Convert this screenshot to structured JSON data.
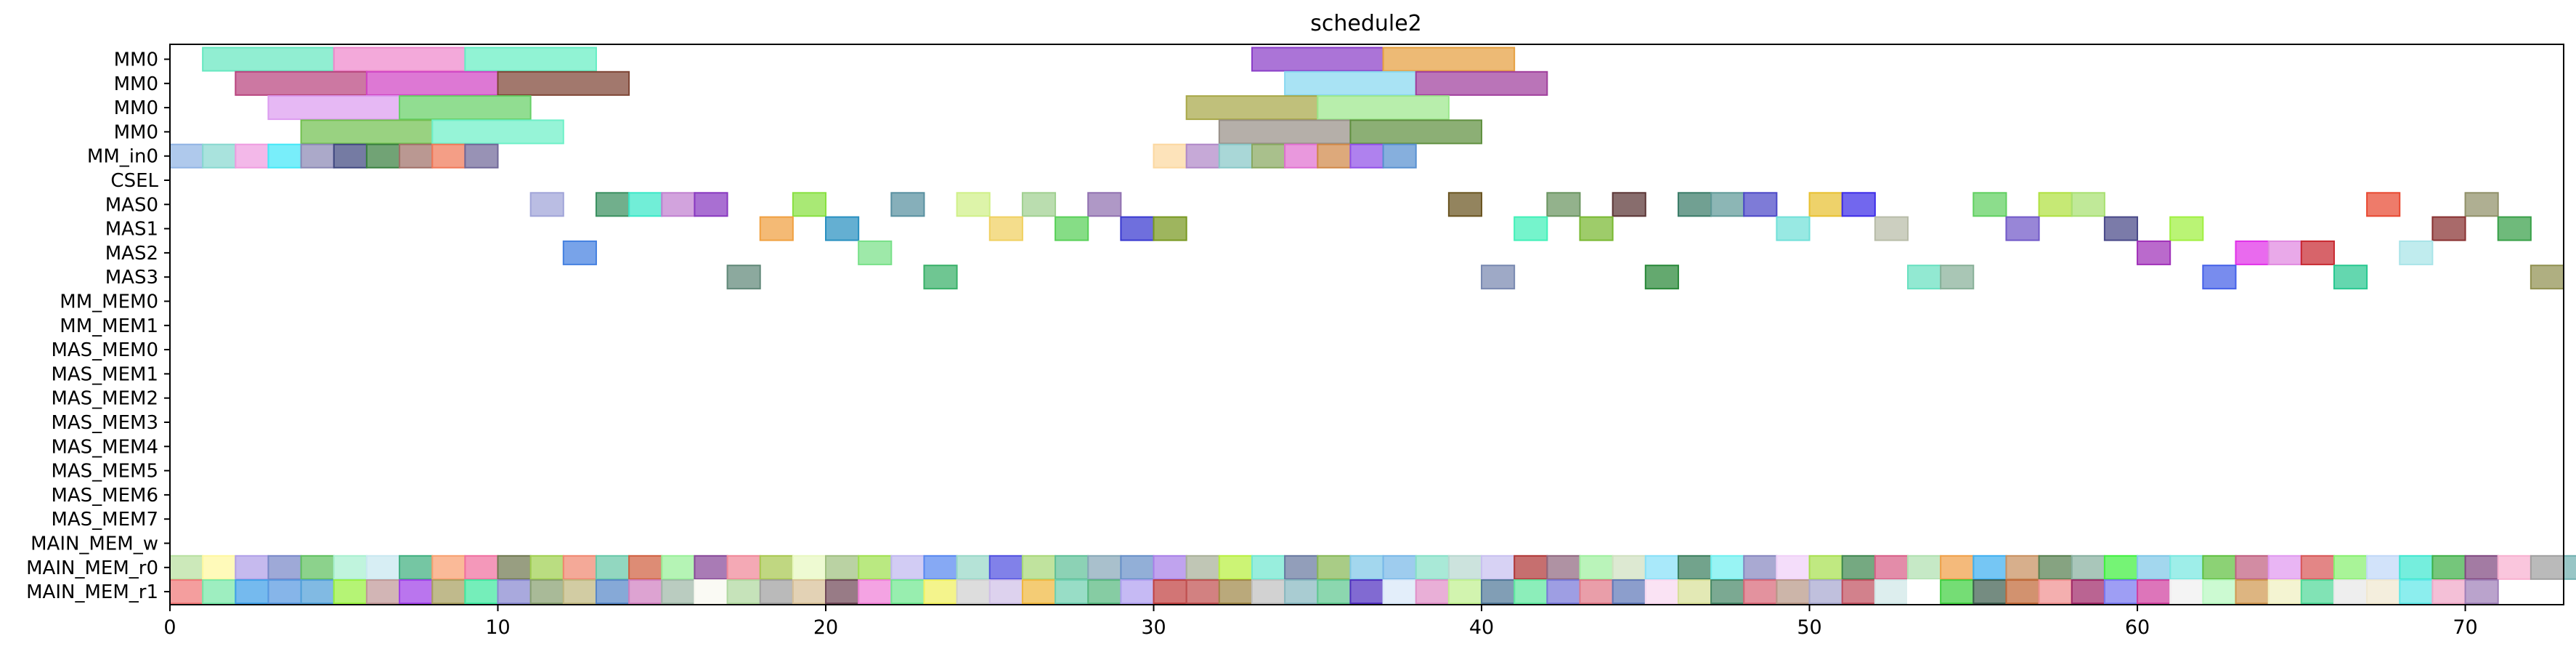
{
  "chart_data": {
    "type": "gantt",
    "title": "schedule2",
    "xlim": [
      0,
      73
    ],
    "x_ticks": [
      0,
      10,
      20,
      30,
      40,
      50,
      60,
      70
    ],
    "grid": false,
    "lanes": [
      "MM0",
      "MM0",
      "MM0",
      "MM0",
      "MM_in0",
      "CSEL",
      "MAS0",
      "MAS1",
      "MAS2",
      "MAS3",
      "MM_MEM0",
      "MM_MEM1",
      "MAS_MEM0",
      "MAS_MEM1",
      "MAS_MEM2",
      "MAS_MEM3",
      "MAS_MEM4",
      "MAS_MEM5",
      "MAS_MEM6",
      "MAS_MEM7",
      "MAIN_MEM_w",
      "MAIN_MEM_r0",
      "MAIN_MEM_r1"
    ],
    "tasks": [
      {
        "lane": 0,
        "start": 1,
        "end": 5,
        "color": "#66e8c0"
      },
      {
        "lane": 0,
        "start": 5,
        "end": 9,
        "color": "#ee88cc"
      },
      {
        "lane": 0,
        "start": 9,
        "end": 13,
        "color": "#66eec4"
      },
      {
        "lane": 0,
        "start": 33,
        "end": 37,
        "color": "#8a3ec8"
      },
      {
        "lane": 0,
        "start": 37,
        "end": 41,
        "color": "#e6a040"
      },
      {
        "lane": 1,
        "start": 2,
        "end": 6,
        "color": "#b8447e"
      },
      {
        "lane": 1,
        "start": 6,
        "end": 10,
        "color": "#d044c4"
      },
      {
        "lane": 1,
        "start": 10,
        "end": 14,
        "color": "#7e4434"
      },
      {
        "lane": 1,
        "start": 34,
        "end": 38,
        "color": "#88d8f0"
      },
      {
        "lane": 1,
        "start": 38,
        "end": 42,
        "color": "#a03e9c"
      },
      {
        "lane": 2,
        "start": 3,
        "end": 7,
        "color": "#dc9cf0"
      },
      {
        "lane": 2,
        "start": 7,
        "end": 11,
        "color": "#66d066"
      },
      {
        "lane": 2,
        "start": 31,
        "end": 35,
        "color": "#a8a848"
      },
      {
        "lane": 2,
        "start": 35,
        "end": 39,
        "color": "#9ce88c"
      },
      {
        "lane": 3,
        "start": 4,
        "end": 8,
        "color": "#72c050"
      },
      {
        "lane": 3,
        "start": 8,
        "end": 12,
        "color": "#6ef0c8"
      },
      {
        "lane": 3,
        "start": 32,
        "end": 36,
        "color": "#989088"
      },
      {
        "lane": 3,
        "start": 36,
        "end": 40,
        "color": "#609040"
      },
      {
        "lane": 4,
        "start": 0,
        "end": 1,
        "color": "#90b4e4"
      },
      {
        "lane": 4,
        "start": 1,
        "end": 2,
        "color": "#88d8d0"
      },
      {
        "lane": 4,
        "start": 2,
        "end": 3,
        "color": "#ee9ce0"
      },
      {
        "lane": 4,
        "start": 3,
        "end": 4,
        "color": "#44e8f8"
      },
      {
        "lane": 4,
        "start": 4,
        "end": 5,
        "color": "#8a88b4"
      },
      {
        "lane": 4,
        "start": 5,
        "end": 6,
        "color": "#404880"
      },
      {
        "lane": 4,
        "start": 6,
        "end": 7,
        "color": "#3a8040"
      },
      {
        "lane": 4,
        "start": 7,
        "end": 8,
        "color": "#a07068"
      },
      {
        "lane": 4,
        "start": 8,
        "end": 9,
        "color": "#f07858"
      },
      {
        "lane": 4,
        "start": 9,
        "end": 10,
        "color": "#706898"
      },
      {
        "lane": 4,
        "start": 30,
        "end": 31,
        "color": "#fcd8a0"
      },
      {
        "lane": 4,
        "start": 31,
        "end": 32,
        "color": "#b088c8"
      },
      {
        "lane": 4,
        "start": 32,
        "end": 33,
        "color": "#88c8c8"
      },
      {
        "lane": 4,
        "start": 33,
        "end": 34,
        "color": "#88a860"
      },
      {
        "lane": 4,
        "start": 34,
        "end": 35,
        "color": "#e070d0"
      },
      {
        "lane": 4,
        "start": 35,
        "end": 36,
        "color": "#d08848"
      },
      {
        "lane": 4,
        "start": 36,
        "end": 37,
        "color": "#9050e8"
      },
      {
        "lane": 4,
        "start": 37,
        "end": 38,
        "color": "#5890d0"
      },
      {
        "lane": 6,
        "start": 11,
        "end": 12,
        "color": "#a0a4d8"
      },
      {
        "lane": 6,
        "start": 13,
        "end": 14,
        "color": "#3a9060"
      },
      {
        "lane": 6,
        "start": 14,
        "end": 15,
        "color": "#3ae8c8"
      },
      {
        "lane": 6,
        "start": 15,
        "end": 16,
        "color": "#c080d0"
      },
      {
        "lane": 6,
        "start": 16,
        "end": 17,
        "color": "#8838c0"
      },
      {
        "lane": 6,
        "start": 19,
        "end": 20,
        "color": "#88e040"
      },
      {
        "lane": 6,
        "start": 22,
        "end": 23,
        "color": "#5890a0"
      },
      {
        "lane": 6,
        "start": 24,
        "end": 25,
        "color": "#d0f088"
      },
      {
        "lane": 6,
        "start": 26,
        "end": 27,
        "color": "#a0d090"
      },
      {
        "lane": 6,
        "start": 28,
        "end": 29,
        "color": "#9070b0"
      },
      {
        "lane": 6,
        "start": 39,
        "end": 40,
        "color": "#6a5420"
      },
      {
        "lane": 6,
        "start": 42,
        "end": 43,
        "color": "#6a9460"
      },
      {
        "lane": 6,
        "start": 44,
        "end": 45,
        "color": "#5a3434"
      },
      {
        "lane": 6,
        "start": 46,
        "end": 47,
        "color": "#3a7c68"
      },
      {
        "lane": 6,
        "start": 47,
        "end": 48,
        "color": "#609a98"
      },
      {
        "lane": 6,
        "start": 48,
        "end": 49,
        "color": "#4c48c8"
      },
      {
        "lane": 6,
        "start": 50,
        "end": 51,
        "color": "#e8c030"
      },
      {
        "lane": 6,
        "start": 51,
        "end": 52,
        "color": "#3c2ce8"
      },
      {
        "lane": 6,
        "start": 55,
        "end": 56,
        "color": "#60d060"
      },
      {
        "lane": 6,
        "start": 57,
        "end": 58,
        "color": "#b0e040"
      },
      {
        "lane": 6,
        "start": 58,
        "end": 59,
        "color": "#a8e070"
      },
      {
        "lane": 6,
        "start": 67,
        "end": 68,
        "color": "#e84830"
      },
      {
        "lane": 6,
        "start": 70,
        "end": 71,
        "color": "#909068"
      },
      {
        "lane": 7,
        "start": 18,
        "end": 19,
        "color": "#f0a040"
      },
      {
        "lane": 7,
        "start": 20,
        "end": 21,
        "color": "#2890c0"
      },
      {
        "lane": 7,
        "start": 25,
        "end": 26,
        "color": "#f0d060"
      },
      {
        "lane": 7,
        "start": 27,
        "end": 28,
        "color": "#58d058"
      },
      {
        "lane": 7,
        "start": 29,
        "end": 30,
        "color": "#3838d0"
      },
      {
        "lane": 7,
        "start": 30,
        "end": 31,
        "color": "#789820"
      },
      {
        "lane": 7,
        "start": 41,
        "end": 42,
        "color": "#40f0b8"
      },
      {
        "lane": 7,
        "start": 43,
        "end": 44,
        "color": "#78b830"
      },
      {
        "lane": 7,
        "start": 49,
        "end": 50,
        "color": "#70e0d8"
      },
      {
        "lane": 7,
        "start": 52,
        "end": 53,
        "color": "#b8bca8"
      },
      {
        "lane": 7,
        "start": 56,
        "end": 57,
        "color": "#7058c8"
      },
      {
        "lane": 7,
        "start": 59,
        "end": 60,
        "color": "#484888"
      },
      {
        "lane": 7,
        "start": 61,
        "end": 62,
        "color": "#a0f040"
      },
      {
        "lane": 7,
        "start": 69,
        "end": 70,
        "color": "#883030"
      },
      {
        "lane": 7,
        "start": 71,
        "end": 72,
        "color": "#38a048"
      },
      {
        "lane": 8,
        "start": 12,
        "end": 13,
        "color": "#4480e0"
      },
      {
        "lane": 8,
        "start": 21,
        "end": 22,
        "color": "#78e088"
      },
      {
        "lane": 8,
        "start": 60,
        "end": 61,
        "color": "#a030b8"
      },
      {
        "lane": 8,
        "start": 63,
        "end": 64,
        "color": "#e030e8"
      },
      {
        "lane": 8,
        "start": 64,
        "end": 65,
        "color": "#e088e0"
      },
      {
        "lane": 8,
        "start": 65,
        "end": 66,
        "color": "#c82830"
      },
      {
        "lane": 8,
        "start": 68,
        "end": 69,
        "color": "#a8e4e8"
      },
      {
        "lane": 9,
        "start": 17,
        "end": 18,
        "color": "#608878"
      },
      {
        "lane": 9,
        "start": 23,
        "end": 24,
        "color": "#38b068"
      },
      {
        "lane": 9,
        "start": 40,
        "end": 41,
        "color": "#7888b0"
      },
      {
        "lane": 9,
        "start": 45,
        "end": 46,
        "color": "#288838"
      },
      {
        "lane": 9,
        "start": 53,
        "end": 54,
        "color": "#68e0c0"
      },
      {
        "lane": 9,
        "start": 54,
        "end": 55,
        "color": "#88b098"
      },
      {
        "lane": 9,
        "start": 62,
        "end": 63,
        "color": "#4460e8"
      },
      {
        "lane": 9,
        "start": 66,
        "end": 67,
        "color": "#28c890"
      },
      {
        "lane": 9,
        "start": 72,
        "end": 73,
        "color": "#909050"
      }
    ],
    "main_mem_r0_colors": [
      "#b8e0a0",
      "#fff8a0",
      "#b0a0e8",
      "#7888c8",
      "#60c060",
      "#a8f0d0",
      "#c8e8f0",
      "#40b080",
      "#f8a070",
      "#f070a0",
      "#707850",
      "#a0d050",
      "#f08870",
      "#68c8a8",
      "#d06040",
      "#98f098",
      "#884898",
      "#f08898",
      "#a8c850",
      "#e8f8c0",
      "#a0c080",
      "#a0e050",
      "#c0b8f0",
      "#5888f0",
      "#98d8c8",
      "#5050e0",
      "#a8d878",
      "#60c098",
      "#88a8b8",
      "#6890c8",
      "#a880e8",
      "#a8b098",
      "#b8f040",
      "#70e8d0",
      "#6878a0",
      "#88b858",
      "#80c8e8",
      "#78b8e8",
      "#88e0c8",
      "#b8d8d0",
      "#c8c0f0",
      "#b03838",
      "#906880",
      "#a0f0a0",
      "#d0e0c0",
      "#88e0f8",
      "#3c8060",
      "#70f0f0",
      "#8888c0",
      "#f0d0f8",
      "#a8e050",
      "#408850",
      "#d86088",
      "#b0e0b0",
      "#f0a048",
      "#40b0f0",
      "#c89060",
      "#588050",
      "#88b0a0",
      "#40f040",
      "#80c8e8",
      "#78e8e0",
      "#60c040",
      "#c06080",
      "#e098f0",
      "#d85858",
      "#88f070",
      "#c0d8f8",
      "#40e8d0",
      "#40b048",
      "#804880",
      "#f8b0d0",
      "#a0a0a0",
      "#70b0b0"
    ],
    "main_mem_r1_colors": [
      "#f07878",
      "#78e8a8",
      "#40a0e8",
      "#5898e0",
      "#50a0d8",
      "#98f040",
      "#c09898",
      "#a040e8",
      "#a8a060",
      "#40e8a0",
      "#8888d0",
      "#88a070",
      "#c0b880",
      "#5888c8",
      "#d080c0",
      "#a0b8a8",
      "#f8f8f0",
      "#b0d8a0",
      "#a0a0a0",
      "#d8c098",
      "#704858",
      "#f080d8",
      "#70e890",
      "#f0f060",
      "#d0d0d0",
      "#d0c0e8",
      "#f0b840",
      "#70d0b0",
      "#58b880",
      "#b0a0f0",
      "#c04040",
      "#c05050",
      "#a08848",
      "#c0c0c0",
      "#88b8c0",
      "#60c890",
      "#5030c0",
      "#d8e8f8",
      "#e090c8",
      "#c0f090",
      "#507898",
      "#60e8a0",
      "#7878d8",
      "#e07888",
      "#6078b8",
      "#f8d8f0",
      "#d8e098",
      "#488868",
      "#d86878",
      "#b89888",
      "#a8a8d0",
      "#c05060",
      "#d0e8e8",
      "#ffffff",
      "#40d040",
      "#406050",
      "#c06838",
      "#f09090",
      "#a02868",
      "#7878f0",
      "#d040a0",
      "#f0f0f0",
      "#b8f8c0",
      "#d09850",
      "#f0f0c0",
      "#50d898",
      "#e8e8e8",
      "#f0e8d0",
      "#60e8e8",
      "#f0a8c8",
      "#a080b8"
    ]
  }
}
